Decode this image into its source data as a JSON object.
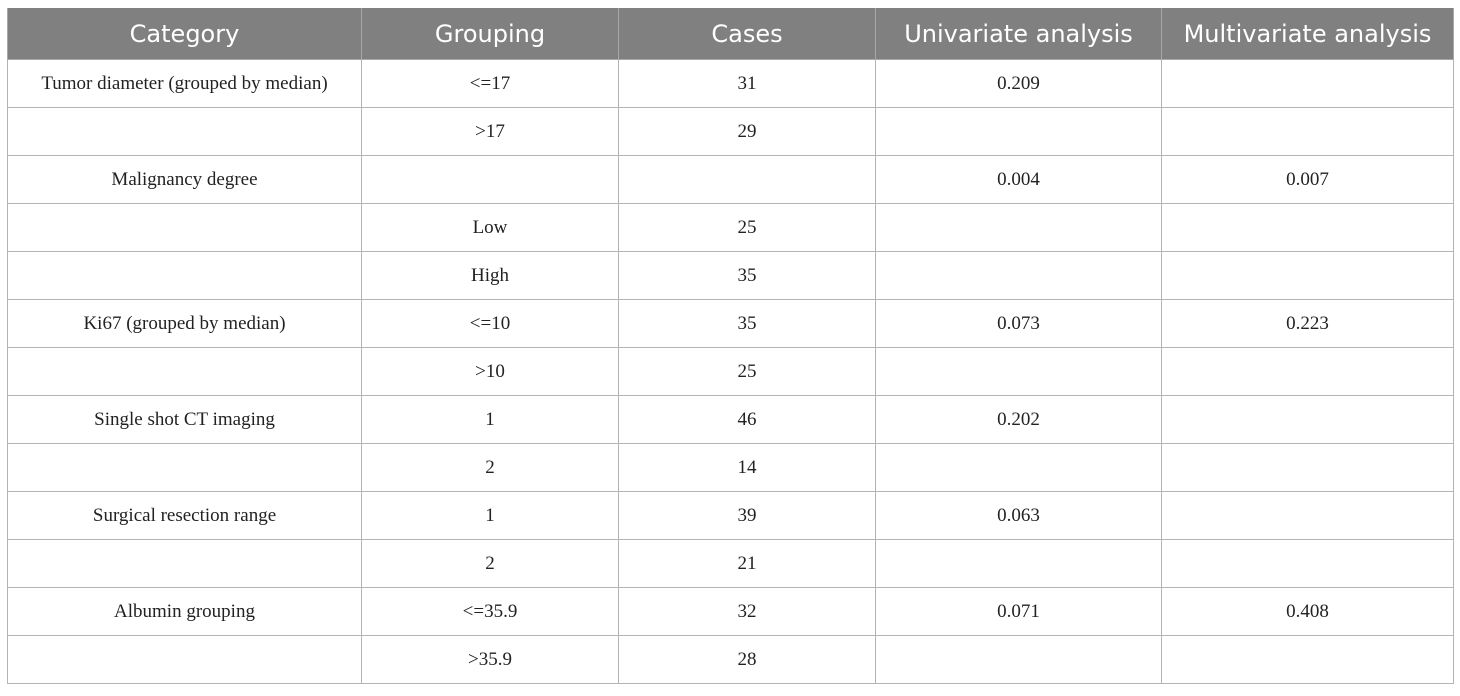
{
  "table": {
    "headers": [
      "Category",
      "Grouping",
      "Cases",
      "Univariate analysis",
      "Multivariate analysis"
    ],
    "rows": [
      [
        "Tumor diameter (grouped by median)",
        "<=17",
        "31",
        "0.209",
        ""
      ],
      [
        "",
        ">17",
        "29",
        "",
        ""
      ],
      [
        "Malignancy degree",
        "",
        "",
        "0.004",
        "0.007"
      ],
      [
        "",
        "Low",
        "25",
        "",
        ""
      ],
      [
        "",
        "High",
        "35",
        "",
        ""
      ],
      [
        "Ki67 (grouped by median)",
        "<=10",
        "35",
        "0.073",
        "0.223"
      ],
      [
        "",
        ">10",
        "25",
        "",
        ""
      ],
      [
        "Single shot CT imaging",
        "1",
        "46",
        "0.202",
        ""
      ],
      [
        "",
        "2",
        "14",
        "",
        ""
      ],
      [
        "Surgical resection range",
        "1",
        "39",
        "0.063",
        ""
      ],
      [
        "",
        "2",
        "21",
        "",
        ""
      ],
      [
        "Albumin grouping",
        "<=35.9",
        "32",
        "0.071",
        "0.408"
      ],
      [
        "",
        ">35.9",
        "28",
        "",
        ""
      ]
    ]
  }
}
